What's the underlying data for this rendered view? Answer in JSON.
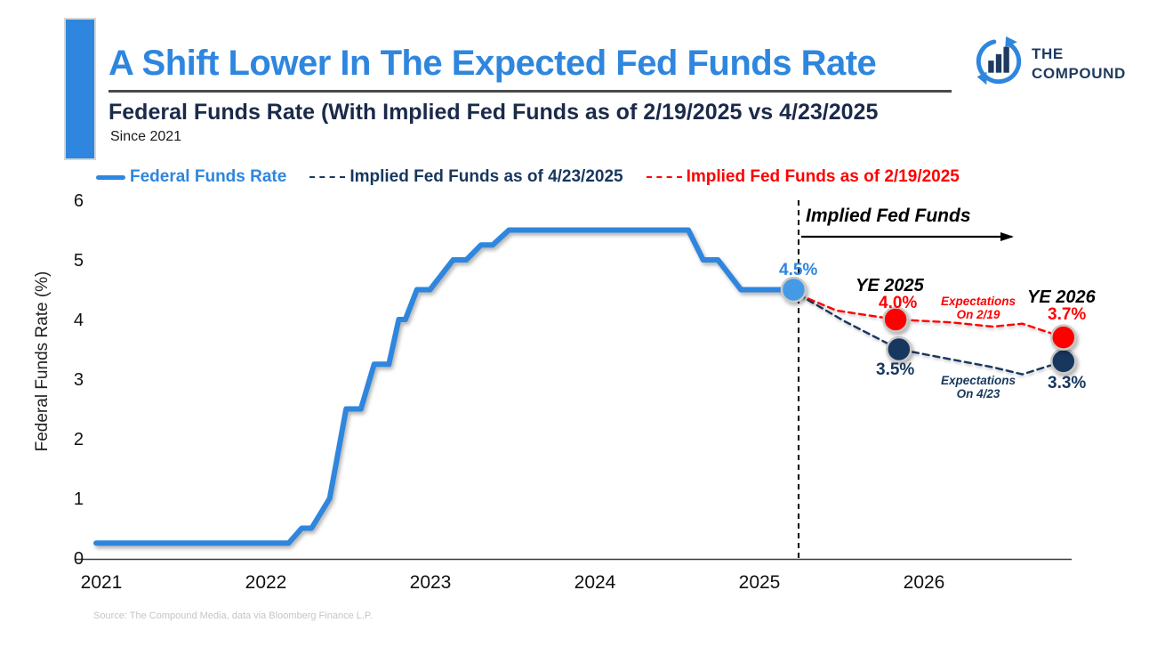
{
  "header": {
    "title": "A Shift Lower In The Expected Fed Funds Rate",
    "subtitle": "Federal Funds Rate (With Implied Fed Funds as of 2/19/2025 vs 4/23/2025",
    "period_note": "Since 2021",
    "accent_color": "#2e86de"
  },
  "logo": {
    "brand_line1": "THE",
    "brand_line2": "COMPOUND",
    "icon": "circular-arrow-bar-chart-icon",
    "navy": "#1e3a5f",
    "blue": "#2e86de"
  },
  "legend": {
    "items": [
      {
        "label": "Federal Funds Rate",
        "color": "#2e86de",
        "style": "solid"
      },
      {
        "label": "Implied Fed Funds as of 4/23/2025",
        "color": "#17375e",
        "style": "dashed"
      },
      {
        "label": "Implied Fed Funds as of 2/19/2025",
        "color": "#fe0000",
        "style": "dashed"
      }
    ]
  },
  "chart_data": {
    "type": "line",
    "title": "Federal Funds Rate (With Implied Fed Funds as of 2/19/2025 vs 4/23/2025",
    "xlabel": "",
    "ylabel": "Federal Funds Rate (%)",
    "ylim": [
      0,
      6
    ],
    "xlim": [
      2021,
      2027
    ],
    "grid": false,
    "legend_position": "top",
    "x_ticks": [
      "2021",
      "2022",
      "2023",
      "2024",
      "2025",
      "2026"
    ],
    "y_ticks": [
      "0",
      "1",
      "2",
      "3",
      "4",
      "5",
      "6"
    ],
    "series": [
      {
        "name": "Federal Funds Rate",
        "color": "#2e86de",
        "dash": false,
        "width": 6,
        "points": [
          [
            2021.0,
            0.25
          ],
          [
            2022.17,
            0.25
          ],
          [
            2022.25,
            0.5
          ],
          [
            2022.31,
            0.5
          ],
          [
            2022.42,
            1.0
          ],
          [
            2022.52,
            2.5
          ],
          [
            2022.61,
            2.5
          ],
          [
            2022.69,
            3.25
          ],
          [
            2022.78,
            3.25
          ],
          [
            2022.84,
            4.0
          ],
          [
            2022.88,
            4.0
          ],
          [
            2022.95,
            4.5
          ],
          [
            2023.03,
            4.5
          ],
          [
            2023.17,
            5.0
          ],
          [
            2023.25,
            5.0
          ],
          [
            2023.34,
            5.25
          ],
          [
            2023.41,
            5.25
          ],
          [
            2023.51,
            5.5
          ],
          [
            2024.6,
            5.5
          ],
          [
            2024.69,
            5.0
          ],
          [
            2024.78,
            5.0
          ],
          [
            2024.92,
            4.5
          ],
          [
            2025.24,
            4.5
          ]
        ],
        "markers": [
          {
            "x": 2025.24,
            "y": 4.5,
            "fill": "#459ae6",
            "label": "4.5%"
          }
        ]
      },
      {
        "name": "Implied Fed Funds as of 4/23/2025",
        "color": "#17375e",
        "dash": true,
        "width": 2.4,
        "points": [
          [
            2025.27,
            4.42
          ],
          [
            2025.55,
            3.97
          ],
          [
            2025.88,
            3.5
          ],
          [
            2026.2,
            3.33
          ],
          [
            2026.45,
            3.2
          ],
          [
            2026.63,
            3.08
          ],
          [
            2026.88,
            3.3
          ]
        ],
        "markers": [
          {
            "x": 2025.88,
            "y": 3.5,
            "fill": "#17375e",
            "label": "3.5%"
          },
          {
            "x": 2026.88,
            "y": 3.3,
            "fill": "#17375e",
            "label": "3.3%"
          }
        ]
      },
      {
        "name": "Implied Fed Funds as of 2/19/2025",
        "color": "#fe0000",
        "dash": true,
        "width": 2.4,
        "points": [
          [
            2025.27,
            4.42
          ],
          [
            2025.5,
            4.15
          ],
          [
            2025.86,
            4.0
          ],
          [
            2026.2,
            3.95
          ],
          [
            2026.45,
            3.88
          ],
          [
            2026.63,
            3.93
          ],
          [
            2026.88,
            3.7
          ]
        ],
        "markers": [
          {
            "x": 2025.86,
            "y": 4.0,
            "fill": "#fe0000",
            "label": "4.0%"
          },
          {
            "x": 2026.88,
            "y": 3.7,
            "fill": "#fe0000",
            "label": "3.7%"
          }
        ]
      }
    ],
    "annotations": {
      "divider_x": 2025.27,
      "implied_header": "Implied Fed Funds",
      "current_rate_label": "4.5%",
      "ye2025_label": "YE 2025",
      "ye2025_feb_value": "4.0%",
      "ye2025_apr_value": "3.5%",
      "ye2026_label": "YE 2026",
      "ye2026_feb_value": "3.7%",
      "ye2026_apr_value": "3.3%",
      "feb_expectations_line1": "Expectations",
      "feb_expectations_line2": "On 2/19",
      "apr_expectations_line1": "Expectations",
      "apr_expectations_line2": "On 4/23"
    }
  },
  "footer": {
    "source": "Source: The Compound Media, data via Bloomberg Finance L.P."
  }
}
